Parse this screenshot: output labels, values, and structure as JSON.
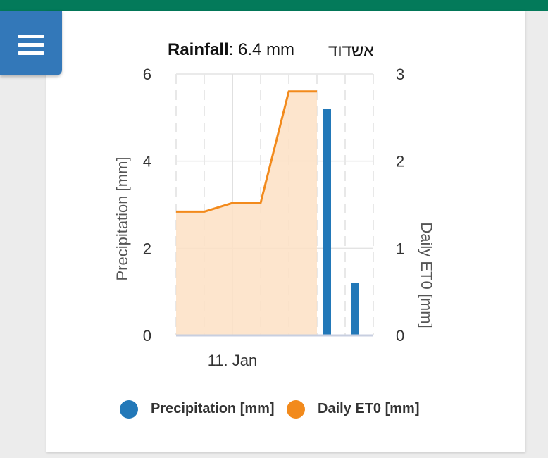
{
  "header": {
    "menu_icon": "hamburger-menu-icon"
  },
  "chart_title": {
    "label": "Rainfall",
    "separator": ":",
    "value": " 6.4 mm",
    "station": "אשדוד"
  },
  "colors": {
    "topbar": "#037a5a",
    "menu_button": "#3378b9",
    "precipitation": "#2278b8",
    "et0_line": "#f28a1c",
    "et0_fill": "#fde0c4"
  },
  "chart_data": {
    "type": "bar+area",
    "title": "Rainfall: 6.4 mm",
    "x_tick_labels": [
      "11. Jan"
    ],
    "x": [
      0,
      1,
      2,
      3,
      4,
      5,
      6
    ],
    "series": [
      {
        "name": "Precipitation [mm]",
        "type": "bar",
        "axis": "left",
        "values": [
          null,
          null,
          null,
          null,
          null,
          5.2,
          1.2
        ]
      },
      {
        "name": "Daily ET0 [mm]",
        "type": "area",
        "axis": "right",
        "values": [
          1.42,
          1.42,
          1.52,
          1.52,
          2.8,
          2.8,
          null
        ]
      }
    ],
    "ylabel": "Precipitation [mm]",
    "ylim": [
      0,
      6
    ],
    "yticks": [
      0,
      2,
      4,
      6
    ],
    "y2label": "Daily ET0 [mm]",
    "y2lim": [
      0,
      3
    ],
    "y2ticks": [
      0,
      1,
      2,
      3
    ],
    "grid": true,
    "legend_position": "bottom"
  },
  "legend": [
    {
      "label": "Precipitation [mm]",
      "color": "#2278b8"
    },
    {
      "label": "Daily ET0 [mm]",
      "color": "#f28a1c"
    }
  ]
}
